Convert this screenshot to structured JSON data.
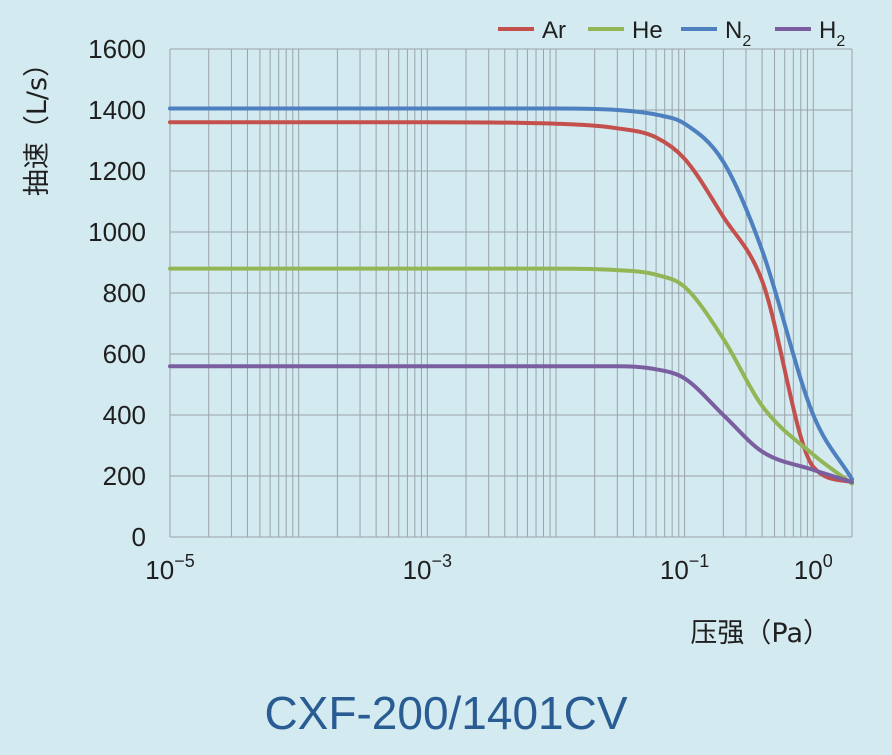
{
  "chart_data": {
    "type": "line",
    "x_scale": "log",
    "xlabel": "压强（Pa）",
    "ylabel": "抽速（L/s）",
    "xlim": [
      1e-05,
      2
    ],
    "ylim": [
      0,
      1600
    ],
    "yticks": [
      0,
      200,
      400,
      600,
      800,
      1000,
      1200,
      1400,
      1600
    ],
    "xtick_labels": [
      {
        "value": 1e-05,
        "base": "10",
        "exp": "−5"
      },
      {
        "value": 0.001,
        "base": "10",
        "exp": "−3"
      },
      {
        "value": 0.1,
        "base": "10",
        "exp": "−1"
      },
      {
        "value": 1,
        "base": "10",
        "exp": "0"
      }
    ],
    "grid": true,
    "legend_position": "top-right",
    "series": [
      {
        "name": "Ar",
        "name_sub": "",
        "color": "#c4504d",
        "x": [
          1e-05,
          0.001,
          0.01,
          0.03,
          0.06,
          0.1,
          0.2,
          0.4,
          1,
          2
        ],
        "y": [
          1360,
          1360,
          1355,
          1340,
          1310,
          1240,
          1050,
          840,
          230,
          180
        ]
      },
      {
        "name": "He",
        "name_sub": "",
        "color": "#92b555",
        "x": [
          1e-05,
          0.001,
          0.01,
          0.03,
          0.06,
          0.1,
          0.2,
          0.4,
          1,
          2
        ],
        "y": [
          880,
          880,
          880,
          875,
          860,
          820,
          650,
          430,
          270,
          175
        ]
      },
      {
        "name": "N",
        "name_sub": "2",
        "color": "#4e7fbe",
        "x": [
          1e-05,
          0.001,
          0.01,
          0.03,
          0.06,
          0.1,
          0.2,
          0.4,
          1,
          2
        ],
        "y": [
          1405,
          1405,
          1405,
          1400,
          1385,
          1355,
          1230,
          940,
          400,
          190
        ]
      },
      {
        "name": "H",
        "name_sub": "2",
        "color": "#7b5ea0",
        "x": [
          1e-05,
          0.001,
          0.01,
          0.03,
          0.06,
          0.1,
          0.2,
          0.4,
          1,
          2
        ],
        "y": [
          560,
          560,
          560,
          560,
          550,
          520,
          400,
          280,
          220,
          180
        ]
      }
    ]
  },
  "footer": {
    "model": "CXF-200/1401CV"
  }
}
